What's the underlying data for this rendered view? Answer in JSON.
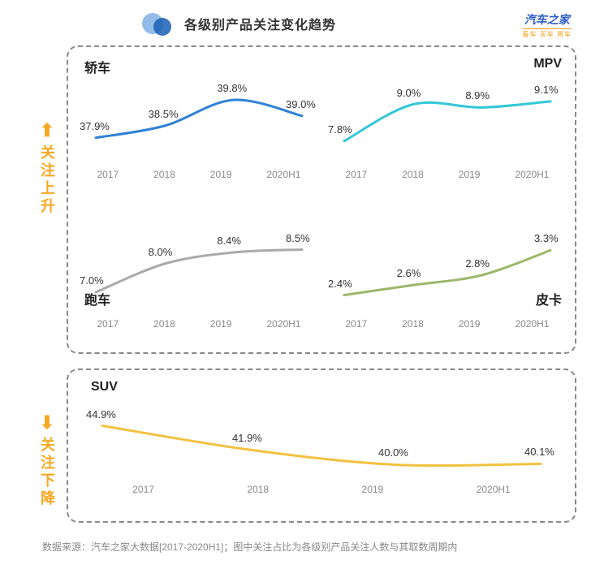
{
  "header": {
    "title": "各级别产品关注变化趋势",
    "brand_top": "汽车之家",
    "brand_bottom": "看车 买车 用车"
  },
  "side": {
    "up_arrow": "⬆",
    "up_text": "关注上升",
    "down_arrow": "⬇",
    "down_text": "关注下降"
  },
  "categories": [
    "2017",
    "2018",
    "2019",
    "2020H1"
  ],
  "charts": {
    "sedan": {
      "title": "轿车",
      "type": "line",
      "values": [
        37.9,
        38.5,
        39.8,
        39.0
      ],
      "labels": [
        "37.9%",
        "38.5%",
        "39.8%",
        "39.0%"
      ],
      "color": "#2f82d8",
      "line_width": 3,
      "yrange": [
        36.5,
        40.5
      ]
    },
    "mpv": {
      "title": "MPV",
      "type": "line",
      "values": [
        7.8,
        9.0,
        8.9,
        9.1
      ],
      "labels": [
        "7.8%",
        "9.0%",
        "8.9%",
        "9.1%"
      ],
      "color": "#34c7d8",
      "line_width": 3,
      "yrange": [
        7.0,
        9.6
      ]
    },
    "sports": {
      "title": "跑车",
      "type": "line",
      "values": [
        7.0,
        8.0,
        8.4,
        8.5
      ],
      "labels": [
        "7.0%",
        "8.0%",
        "8.4%",
        "8.5%"
      ],
      "color": "#aaaaaa",
      "line_width": 3,
      "yrange": [
        6.2,
        9.0
      ]
    },
    "pickup": {
      "title": "皮卡",
      "type": "line",
      "values": [
        2.4,
        2.6,
        2.8,
        3.3
      ],
      "labels": [
        "2.4%",
        "2.6%",
        "2.8%",
        "3.3%"
      ],
      "color": "#9bb86a",
      "line_width": 3,
      "yrange": [
        2.0,
        3.6
      ]
    },
    "suv": {
      "title": "SUV",
      "type": "line",
      "values": [
        44.9,
        41.9,
        40.0,
        40.1
      ],
      "labels": [
        "44.9%",
        "41.9%",
        "40.0%",
        "40.1%"
      ],
      "color": "#f3c141",
      "line_width": 3,
      "yrange": [
        38.0,
        47.0
      ]
    }
  },
  "footer": "数据来源：汽车之家大数据[2017-2020H1]；图中关注占比为各级别产品关注人数与其取数周期内",
  "style": {
    "background": "#ffffff",
    "border_color": "#888888",
    "axis_label_color": "#888888",
    "axis_fontsize": 12,
    "data_label_fontsize": 13,
    "title_fontsize": 16,
    "side_color": "#f6a823"
  }
}
